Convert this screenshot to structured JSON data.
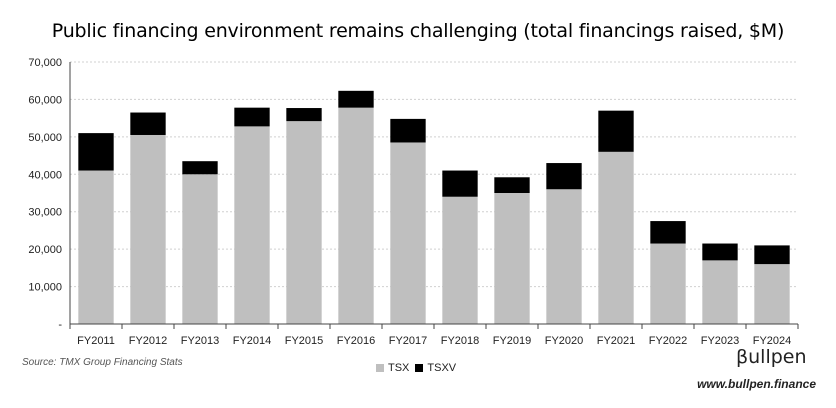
{
  "chart_data": {
    "type": "bar",
    "stacked": true,
    "title": "Public financing environment remains challenging (total financings raised, $M)",
    "categories": [
      "FY2011",
      "FY2012",
      "FY2013",
      "FY2014",
      "FY2015",
      "FY2016",
      "FY2017",
      "FY2018",
      "FY2019",
      "FY2020",
      "FY2021",
      "FY2022",
      "FY2023",
      "FY2024"
    ],
    "series": [
      {
        "name": "TSX",
        "color": "#bfbfbf",
        "values": [
          41000,
          50500,
          40000,
          52800,
          54200,
          57800,
          48500,
          34000,
          35000,
          36000,
          46000,
          21500,
          17000,
          16000
        ]
      },
      {
        "name": "TSXV",
        "color": "#000000",
        "values": [
          10000,
          6000,
          3500,
          5000,
          3500,
          4500,
          6300,
          7000,
          4200,
          7000,
          11000,
          6000,
          4500,
          5000
        ]
      }
    ],
    "ylim": [
      0,
      70000
    ],
    "yticks": [
      "-",
      "10,000",
      "20,000",
      "30,000",
      "40,000",
      "50,000",
      "60,000",
      "70,000"
    ],
    "grid": true,
    "legend_position": "bottom"
  },
  "source": "Source: TMX Group Financing Stats",
  "brand": {
    "logo": "βullpen",
    "url": "www.bullpen.finance"
  }
}
